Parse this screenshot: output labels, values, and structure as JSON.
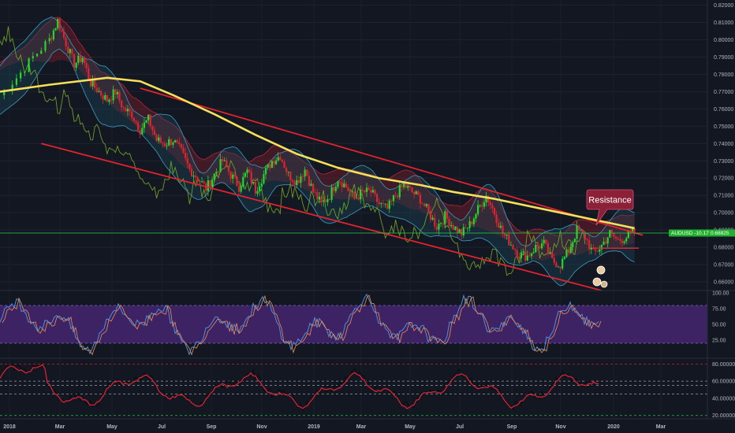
{
  "chart_data": [
    {
      "type": "candlestick",
      "symbol_label": "AUDUSD",
      "change_label": "-10.17%",
      "last_price_label": "0.68825",
      "last_price": 0.68825,
      "y_ticks": [
        "0.82000",
        "0.81000",
        "0.80000",
        "0.79000",
        "0.78000",
        "0.77000",
        "0.76000",
        "0.75000",
        "0.74000",
        "0.73000",
        "0.72000",
        "0.71000",
        "0.70000",
        "0.69000",
        "0.68000",
        "0.67000",
        "0.66000"
      ],
      "ylim": [
        0.655,
        0.823
      ],
      "x_ticks": [
        "2018",
        "Mar",
        "May",
        "Jul",
        "Sep",
        "Nov",
        "2019",
        "Mar",
        "May",
        "Jul",
        "Sep",
        "Nov",
        "2020",
        "Mar"
      ],
      "grid": true,
      "annotations": [
        {
          "type": "callout",
          "text": "Resistance"
        }
      ],
      "price_path": [
        [
          0,
          0.768
        ],
        [
          2,
          0.778
        ],
        [
          4,
          0.79
        ],
        [
          6,
          0.8
        ],
        [
          7,
          0.811
        ],
        [
          8,
          0.798
        ],
        [
          9,
          0.786
        ],
        [
          10,
          0.79
        ],
        [
          11,
          0.775
        ],
        [
          12,
          0.77
        ],
        [
          13,
          0.765
        ],
        [
          14,
          0.77
        ],
        [
          15,
          0.76
        ],
        [
          16,
          0.757
        ],
        [
          17,
          0.748
        ],
        [
          18,
          0.754
        ],
        [
          19,
          0.742
        ],
        [
          20,
          0.74
        ],
        [
          21,
          0.742
        ],
        [
          22,
          0.735
        ],
        [
          23,
          0.725
        ],
        [
          24,
          0.72
        ],
        [
          25,
          0.714
        ],
        [
          26,
          0.722
        ],
        [
          27,
          0.73
        ],
        [
          28,
          0.722
        ],
        [
          29,
          0.715
        ],
        [
          30,
          0.724
        ],
        [
          31,
          0.713
        ],
        [
          32,
          0.722
        ],
        [
          33,
          0.73
        ],
        [
          34,
          0.733
        ],
        [
          35,
          0.722
        ],
        [
          36,
          0.718
        ],
        [
          37,
          0.725
        ],
        [
          38,
          0.712
        ],
        [
          39,
          0.705
        ],
        [
          40,
          0.71
        ],
        [
          41,
          0.72
        ],
        [
          42,
          0.715
        ],
        [
          43,
          0.708
        ],
        [
          44,
          0.712
        ],
        [
          45,
          0.712
        ],
        [
          46,
          0.705
        ],
        [
          47,
          0.702
        ],
        [
          48,
          0.71
        ],
        [
          49,
          0.716
        ],
        [
          50,
          0.712
        ],
        [
          51,
          0.708
        ],
        [
          52,
          0.7
        ],
        [
          53,
          0.692
        ],
        [
          54,
          0.698
        ],
        [
          55,
          0.692
        ],
        [
          56,
          0.688
        ],
        [
          57,
          0.693
        ],
        [
          58,
          0.702
        ],
        [
          59,
          0.71
        ],
        [
          60,
          0.7
        ],
        [
          61,
          0.688
        ],
        [
          62,
          0.682
        ],
        [
          63,
          0.676
        ],
        [
          64,
          0.675
        ],
        [
          65,
          0.68
        ],
        [
          66,
          0.682
        ],
        [
          67,
          0.672
        ],
        [
          68,
          0.67
        ],
        [
          69,
          0.678
        ],
        [
          70,
          0.69
        ],
        [
          71,
          0.686
        ],
        [
          72,
          0.676
        ],
        [
          73,
          0.681
        ],
        [
          74,
          0.688
        ],
        [
          75,
          0.684
        ],
        [
          76,
          0.686
        ],
        [
          77,
          0.689
        ]
      ],
      "moving_average": [
        [
          0,
          0.77
        ],
        [
          6,
          0.774
        ],
        [
          13,
          0.778
        ],
        [
          17,
          0.776
        ],
        [
          21,
          0.768
        ],
        [
          26,
          0.757
        ],
        [
          31,
          0.745
        ],
        [
          36,
          0.734
        ],
        [
          41,
          0.726
        ],
        [
          46,
          0.72
        ],
        [
          51,
          0.716
        ],
        [
          55,
          0.712
        ],
        [
          60,
          0.708
        ],
        [
          65,
          0.703
        ],
        [
          70,
          0.698
        ],
        [
          75,
          0.693
        ],
        [
          77,
          0.691
        ]
      ],
      "channel_upper": [
        [
          17,
          0.772
        ],
        [
          78,
          0.687
        ]
      ],
      "channel_lower": [
        [
          5,
          0.74
        ],
        [
          73,
          0.655
        ]
      ],
      "support_level": 0.6795
    },
    {
      "type": "line",
      "indicator": "stochastic",
      "y_ticks": [
        "100.00",
        "75.00",
        "50.00",
        "25.00"
      ],
      "levels": [
        80,
        20
      ],
      "ylim": [
        0,
        100
      ]
    },
    {
      "type": "line",
      "indicator": "oscillator",
      "y_ticks": [
        "80.00000",
        "60.00000",
        "40.00000",
        "20.00000"
      ],
      "levels": [
        80,
        60,
        55,
        45,
        20
      ],
      "ylim": [
        17,
        84
      ]
    }
  ]
}
